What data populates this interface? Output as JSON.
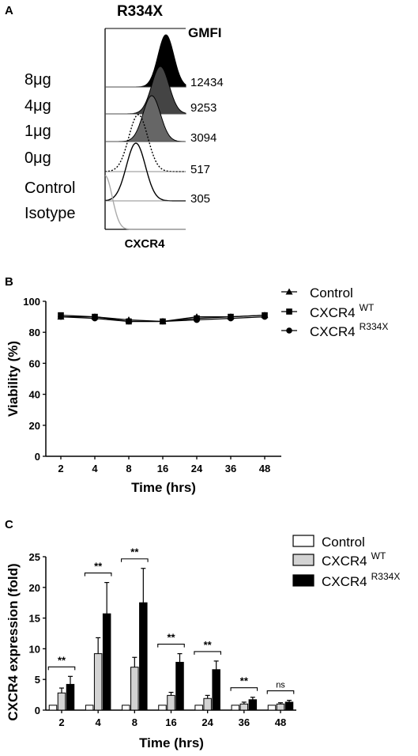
{
  "panel_a": {
    "panel_letter": "A",
    "title": "R334X",
    "header": "GMFI",
    "xlabel": "CXCR4",
    "chart_data": {
      "type": "histogram",
      "title": "R334X",
      "xlabel": "CXCR4",
      "tracks": [
        {
          "label": "8μg",
          "gmfi": "12434",
          "fill": "#000000"
        },
        {
          "label": "4μg",
          "gmfi": "9253",
          "fill": "#444444"
        },
        {
          "label": "1μg",
          "gmfi": "3094",
          "fill": "#666666"
        },
        {
          "label": "0μg",
          "gmfi": "517",
          "fill": "none",
          "line": "dotted"
        },
        {
          "label": "Control",
          "gmfi": "305",
          "fill": "none",
          "line": "solid"
        },
        {
          "label": "Isotype",
          "gmfi": "",
          "fill": "none",
          "line": "gray"
        }
      ]
    }
  },
  "panel_b": {
    "panel_letter": "B",
    "chart_data": {
      "type": "line",
      "categories": [
        "2",
        "4",
        "8",
        "16",
        "24",
        "36",
        "48"
      ],
      "xlabel": "Time (hrs)",
      "ylabel": "Viability (%)",
      "ylim": [
        0,
        100
      ],
      "yticks": [
        "0",
        "20",
        "40",
        "60",
        "80",
        "100"
      ],
      "legend_position": "top-right",
      "series": [
        {
          "name": "Control",
          "sup": "",
          "marker": "triangle",
          "values": [
            90,
            90,
            88,
            87,
            90,
            90,
            91
          ]
        },
        {
          "name": "CXCR4",
          "sup": "WT",
          "marker": "square",
          "values": [
            91,
            90,
            87,
            87,
            89,
            90,
            91
          ]
        },
        {
          "name": "CXCR4",
          "sup": "R334X",
          "marker": "circle",
          "values": [
            90,
            89,
            87,
            87,
            88,
            89,
            90
          ]
        }
      ]
    }
  },
  "panel_c": {
    "panel_letter": "C",
    "chart_data": {
      "type": "bar",
      "categories": [
        "2",
        "4",
        "8",
        "16",
        "24",
        "36",
        "48"
      ],
      "xlabel": "Time (hrs)",
      "ylabel": "CXCR4 expression (fold)",
      "ylim": [
        0,
        25
      ],
      "yticks": [
        "0",
        "5",
        "10",
        "15",
        "20",
        "25"
      ],
      "legend_position": "top-right",
      "series": [
        {
          "name": "Control",
          "sup": "",
          "color": "#ffffff",
          "values": [
            0.8,
            0.8,
            0.8,
            0.8,
            0.8,
            0.8,
            0.8
          ],
          "errors": [
            0,
            0,
            0,
            0,
            0,
            0,
            0
          ]
        },
        {
          "name": "CXCR4",
          "sup": "WT",
          "color": "#d3d3d3",
          "values": [
            2.8,
            9.2,
            7.0,
            2.4,
            1.9,
            1.0,
            1.0
          ],
          "errors": [
            0.8,
            2.6,
            1.6,
            0.5,
            0.5,
            0.3,
            0.2
          ]
        },
        {
          "name": "CXCR4",
          "sup": "R334X",
          "color": "#000000",
          "values": [
            4.2,
            15.7,
            17.5,
            7.8,
            6.6,
            1.7,
            1.3
          ],
          "errors": [
            1.3,
            5.1,
            5.6,
            1.4,
            1.4,
            0.4,
            0.3
          ]
        }
      ],
      "significance": [
        "**",
        "**",
        "**",
        "**",
        "**",
        "**",
        "ns"
      ]
    }
  }
}
